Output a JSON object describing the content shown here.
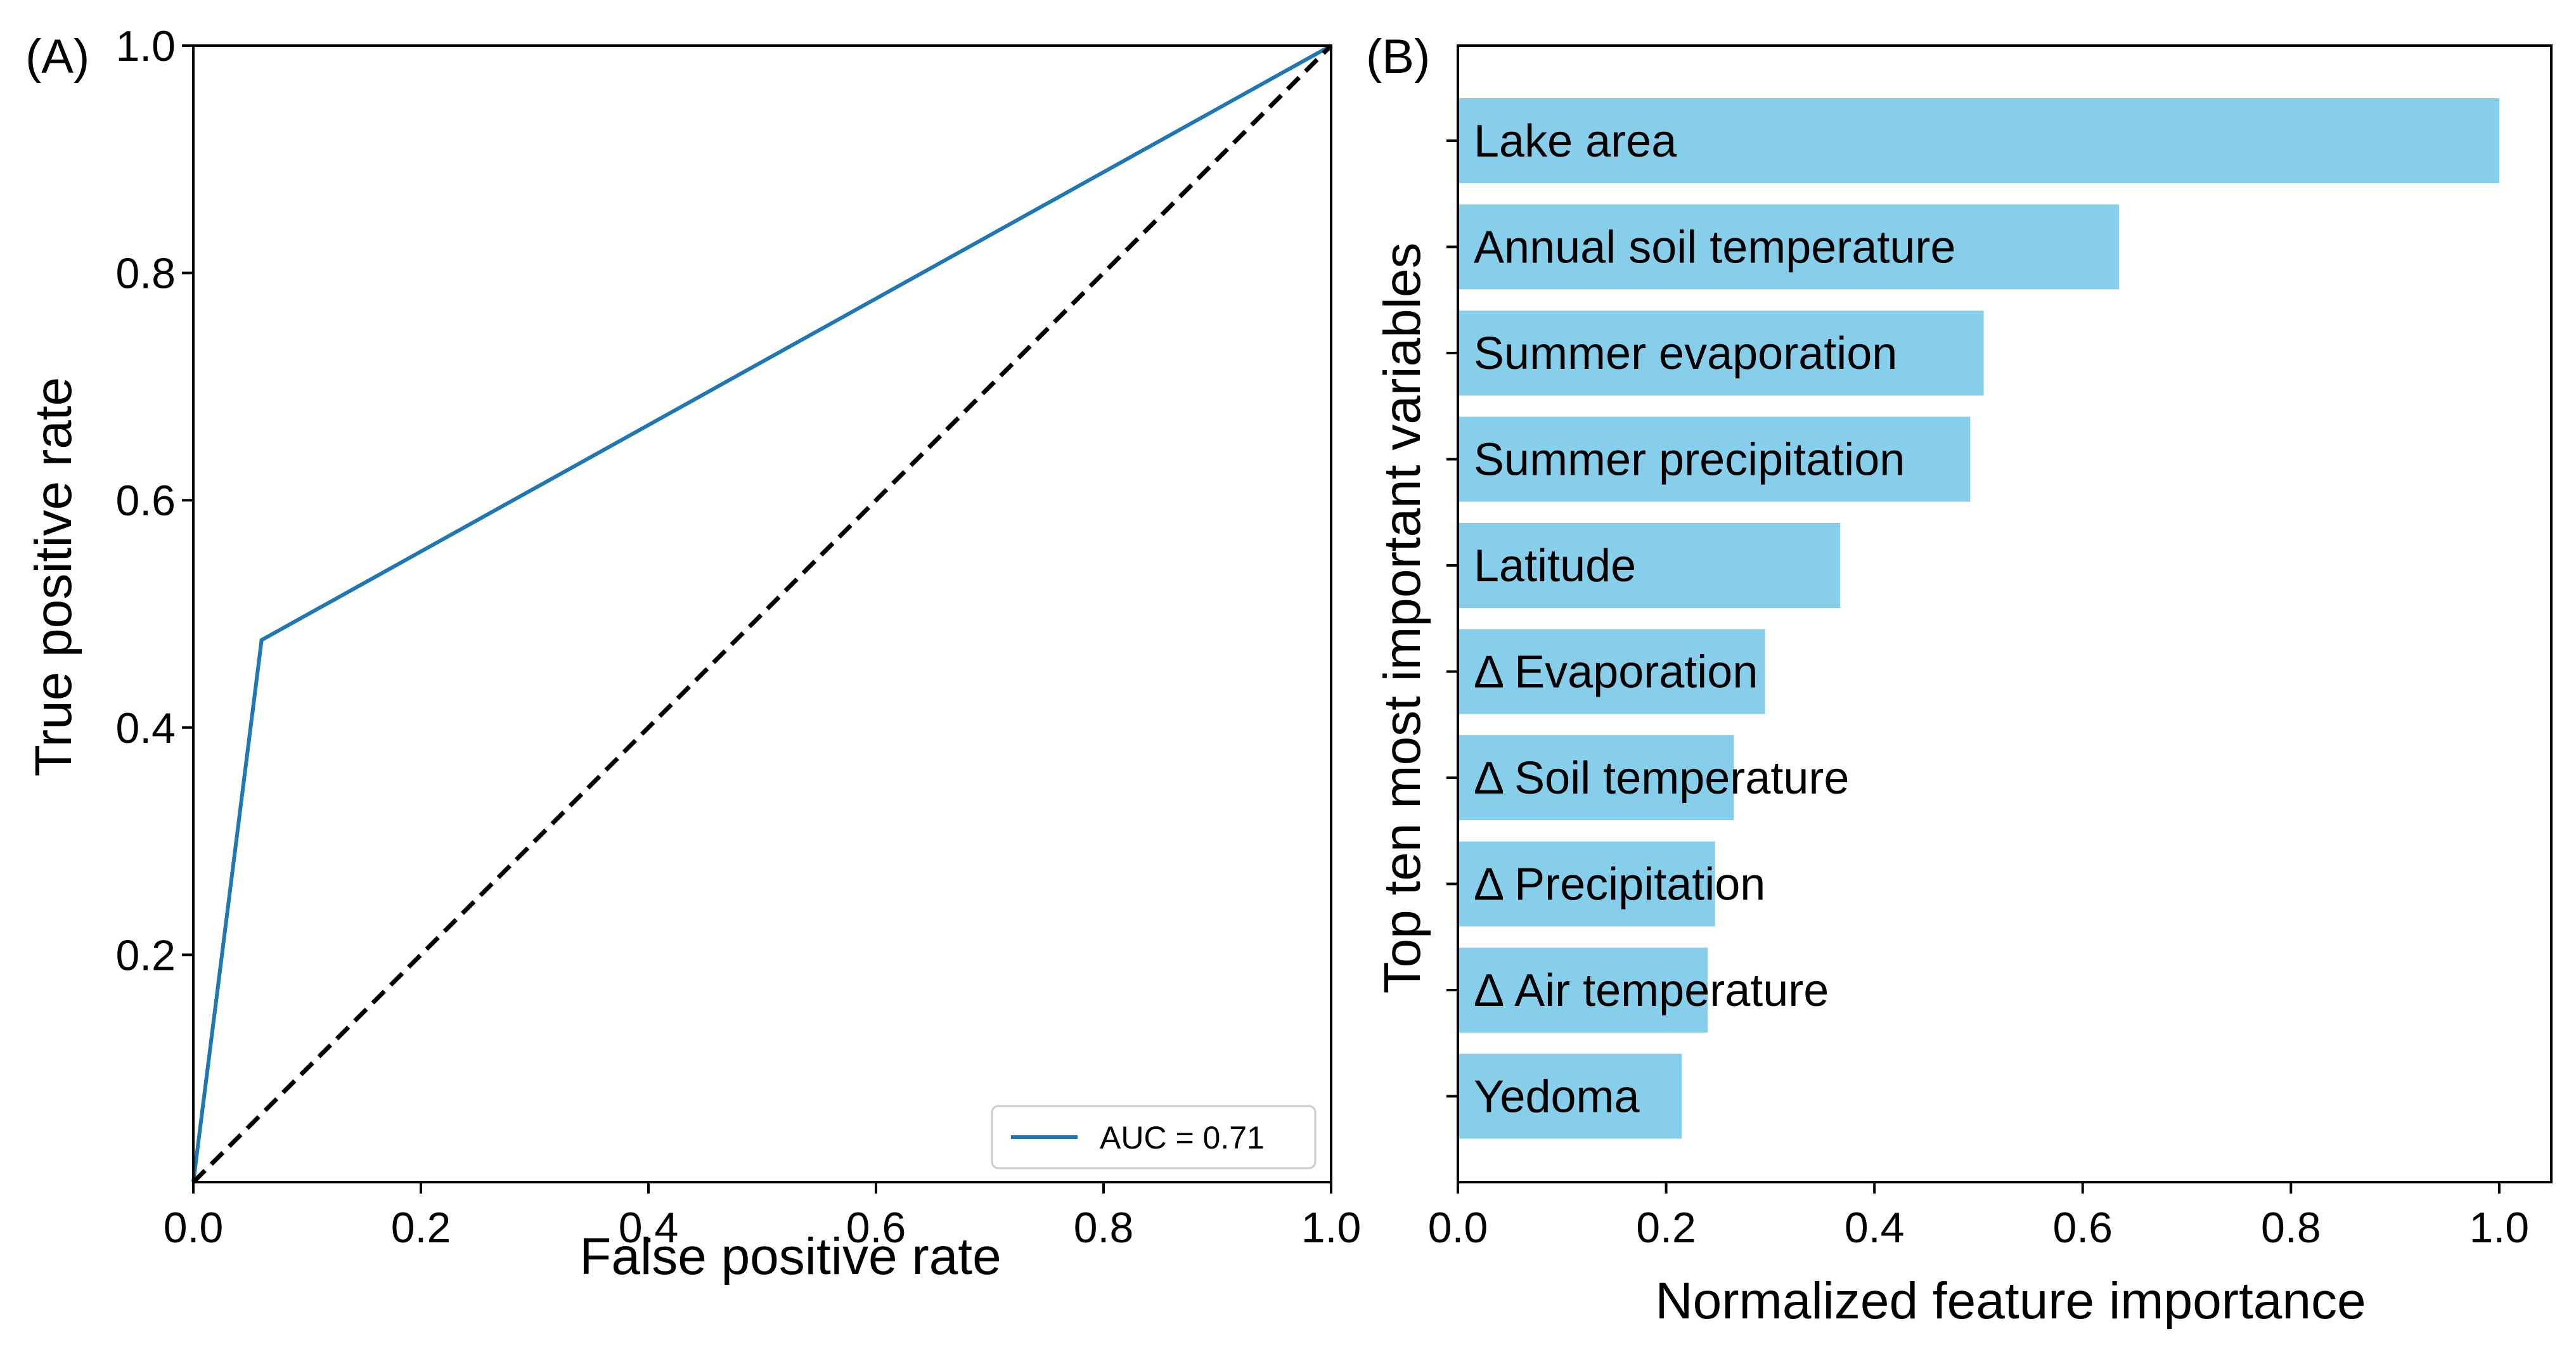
{
  "chart_data": [
    {
      "type": "line",
      "panel_label": "(A)",
      "xlabel": "False positive rate",
      "ylabel": "True positive rate",
      "xlim": [
        0,
        1
      ],
      "ylim": [
        0,
        1
      ],
      "xticks": [
        "0.0",
        "0.2",
        "0.4",
        "0.6",
        "0.8",
        "1.0"
      ],
      "yticks": [
        "0.2",
        "0.4",
        "0.6",
        "0.8",
        "1.0"
      ],
      "series": [
        {
          "name": "AUC = 0.71",
          "color": "#1f77b4",
          "style": "solid",
          "x": [
            0.0,
            0.06,
            1.0
          ],
          "y": [
            0.0,
            0.477,
            1.0
          ]
        },
        {
          "color": "#000000",
          "style": "dashed",
          "x": [
            0.0,
            1.0
          ],
          "y": [
            0.0,
            1.0
          ]
        }
      ],
      "legend": {
        "placement": "bottom-right",
        "entries": [
          "AUC = 0.71"
        ]
      },
      "grid": false
    },
    {
      "type": "bar",
      "orientation": "horizontal",
      "panel_label": "(B)",
      "xlabel": "Normalized feature importance",
      "ylabel": "Top ten most important variables",
      "xlim": [
        0,
        1.05
      ],
      "xticks": [
        "0.0",
        "0.2",
        "0.4",
        "0.6",
        "0.8",
        "1.0"
      ],
      "bar_color": "#87ceeb",
      "categories": [
        "Lake area",
        "Annual soil temperature",
        "Summer evaporation",
        "Summer precipitation",
        "Latitude",
        "Δ Evaporation",
        "Δ Soil temperature",
        "Δ Precipitation",
        "Δ Air temperature",
        "Yedoma"
      ],
      "values": [
        1.0,
        0.635,
        0.505,
        0.492,
        0.367,
        0.295,
        0.265,
        0.247,
        0.24,
        0.215
      ],
      "grid": false
    }
  ]
}
